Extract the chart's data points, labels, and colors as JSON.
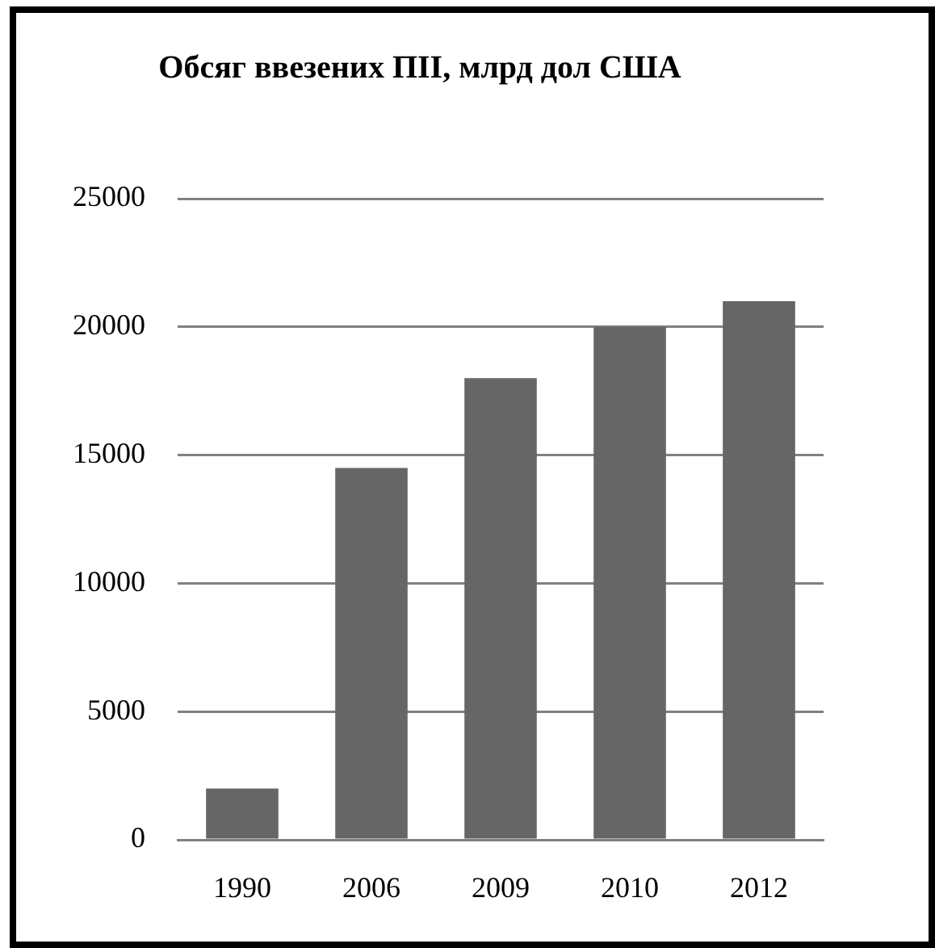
{
  "chart_data": {
    "type": "bar",
    "title": "Обсяг ввезених ПІІ, млрд дол США",
    "categories": [
      "1990",
      "2006",
      "2009",
      "2010",
      "2012"
    ],
    "values": [
      2000,
      14500,
      18000,
      20000,
      21000
    ],
    "color": "#666666",
    "ylim": [
      0,
      25000
    ],
    "yticks": [
      0,
      5000,
      10000,
      15000,
      20000,
      25000
    ],
    "grid": "y"
  }
}
